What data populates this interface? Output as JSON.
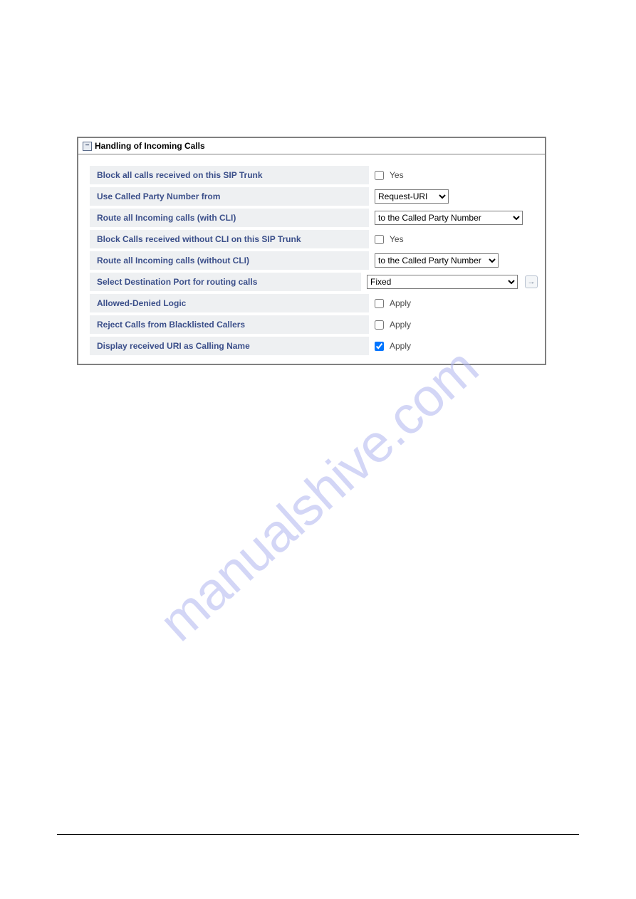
{
  "panel": {
    "title": "Handling of Incoming Calls",
    "collapse_glyph": "−"
  },
  "rows": [
    {
      "label": "Block all calls received on this SIP Trunk",
      "type": "checkbox",
      "value": false,
      "after": "Yes"
    },
    {
      "label": "Use Called Party Number from",
      "type": "select",
      "selected": "Request-URI",
      "size": "sel-sm"
    },
    {
      "label": "Route all Incoming calls (with CLI)",
      "type": "select",
      "selected": "to the Called Party Number",
      "size": "sel-lg"
    },
    {
      "label": "Block Calls received without CLI on this SIP Trunk",
      "type": "checkbox",
      "value": false,
      "after": "Yes"
    },
    {
      "label": "Route all Incoming calls (without CLI)",
      "type": "select",
      "selected": "to the Called Party Number",
      "size": "sel-md"
    },
    {
      "label": "Select Destination Port for routing calls",
      "type": "select",
      "selected": "Fixed",
      "size": "sel-xl",
      "expand": true
    },
    {
      "label": "Allowed-Denied Logic",
      "type": "checkbox",
      "value": false,
      "after": "Apply"
    },
    {
      "label": "Reject Calls from Blacklisted Callers",
      "type": "checkbox",
      "value": false,
      "after": "Apply"
    },
    {
      "label": "Display received URI as Calling Name",
      "type": "checkbox",
      "value": true,
      "after": "Apply"
    }
  ],
  "watermark": "manualshive.com",
  "expand_glyph": "→"
}
